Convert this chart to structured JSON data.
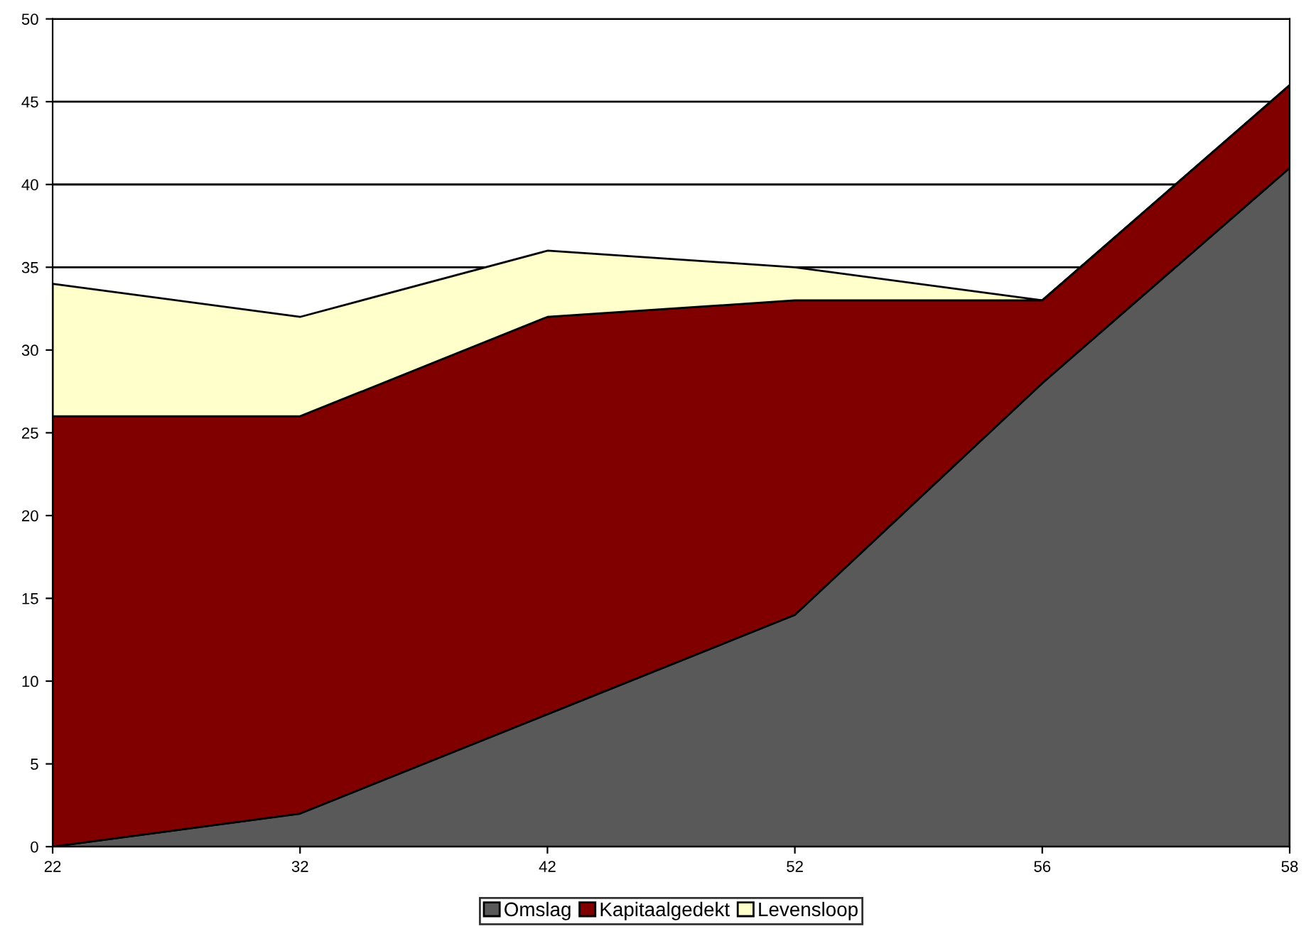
{
  "chart_data": {
    "type": "area",
    "stacked": true,
    "categories": [
      "22",
      "32",
      "42",
      "52",
      "56",
      "58"
    ],
    "series": [
      {
        "name": "Omslag",
        "color": "#595959",
        "values": [
          0,
          2,
          8,
          14,
          28,
          41
        ]
      },
      {
        "name": "Kapitaalgedekt",
        "color": "#800000",
        "values": [
          26,
          24,
          24,
          19,
          5,
          5
        ]
      },
      {
        "name": "Levensloop",
        "color": "#ffffcc",
        "values": [
          8,
          6,
          4,
          2,
          0,
          0
        ]
      }
    ],
    "ylim": [
      0,
      50
    ],
    "yticks": [
      0,
      5,
      10,
      15,
      20,
      25,
      30,
      35,
      40,
      45,
      50
    ],
    "grid": "y",
    "legend": "bottom"
  }
}
